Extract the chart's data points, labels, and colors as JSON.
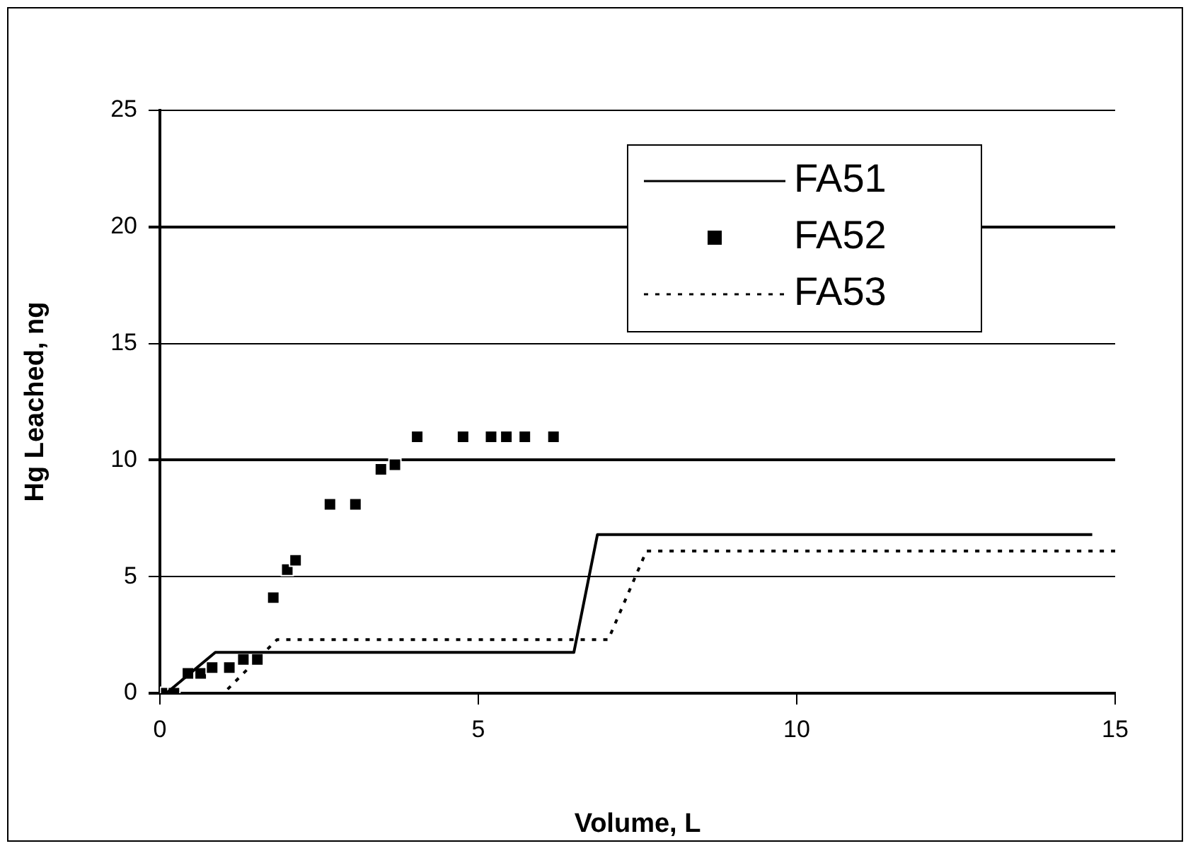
{
  "chart_data": {
    "type": "line",
    "xlabel": "Volume, L",
    "ylabel": "Hg Leached, ng",
    "xlim": [
      0,
      15
    ],
    "xticks": [
      0,
      5,
      10,
      15
    ],
    "ylim": [
      0,
      25
    ],
    "yticks": [
      0,
      5,
      10,
      15,
      20,
      25
    ],
    "grid": "y",
    "legend": "top right",
    "series": [
      {
        "name": "FA51",
        "type": "line",
        "color": "#000000",
        "line_style": "solid",
        "marker": "none",
        "x": [
          0.1,
          0.87,
          6.5,
          6.87,
          14.64
        ],
        "values": [
          0,
          1.75,
          1.75,
          6.8,
          6.8
        ]
      },
      {
        "name": "FA52",
        "type": "scatter",
        "color": "#000000",
        "marker": "square",
        "x": [
          0.1,
          0.22,
          0.44,
          0.64,
          0.82,
          1.09,
          1.31,
          1.53,
          1.78,
          2.0,
          2.13,
          2.67,
          3.07,
          3.47,
          3.69,
          4.04,
          4.76,
          5.2,
          5.44,
          5.73,
          6.18
        ],
        "values": [
          0,
          0,
          0.85,
          0.85,
          1.1,
          1.1,
          1.45,
          1.45,
          4.1,
          5.3,
          5.7,
          8.1,
          8.1,
          9.6,
          9.8,
          11,
          11,
          11,
          11,
          11,
          11
        ]
      },
      {
        "name": "FA53",
        "type": "line",
        "color": "#000000",
        "line_style": "dotted",
        "marker": "none",
        "x": [
          0.2,
          1.0,
          1.84,
          7.04,
          7.64,
          15
        ],
        "values": [
          0,
          0,
          2.3,
          2.3,
          6.1,
          6.1
        ]
      }
    ]
  }
}
